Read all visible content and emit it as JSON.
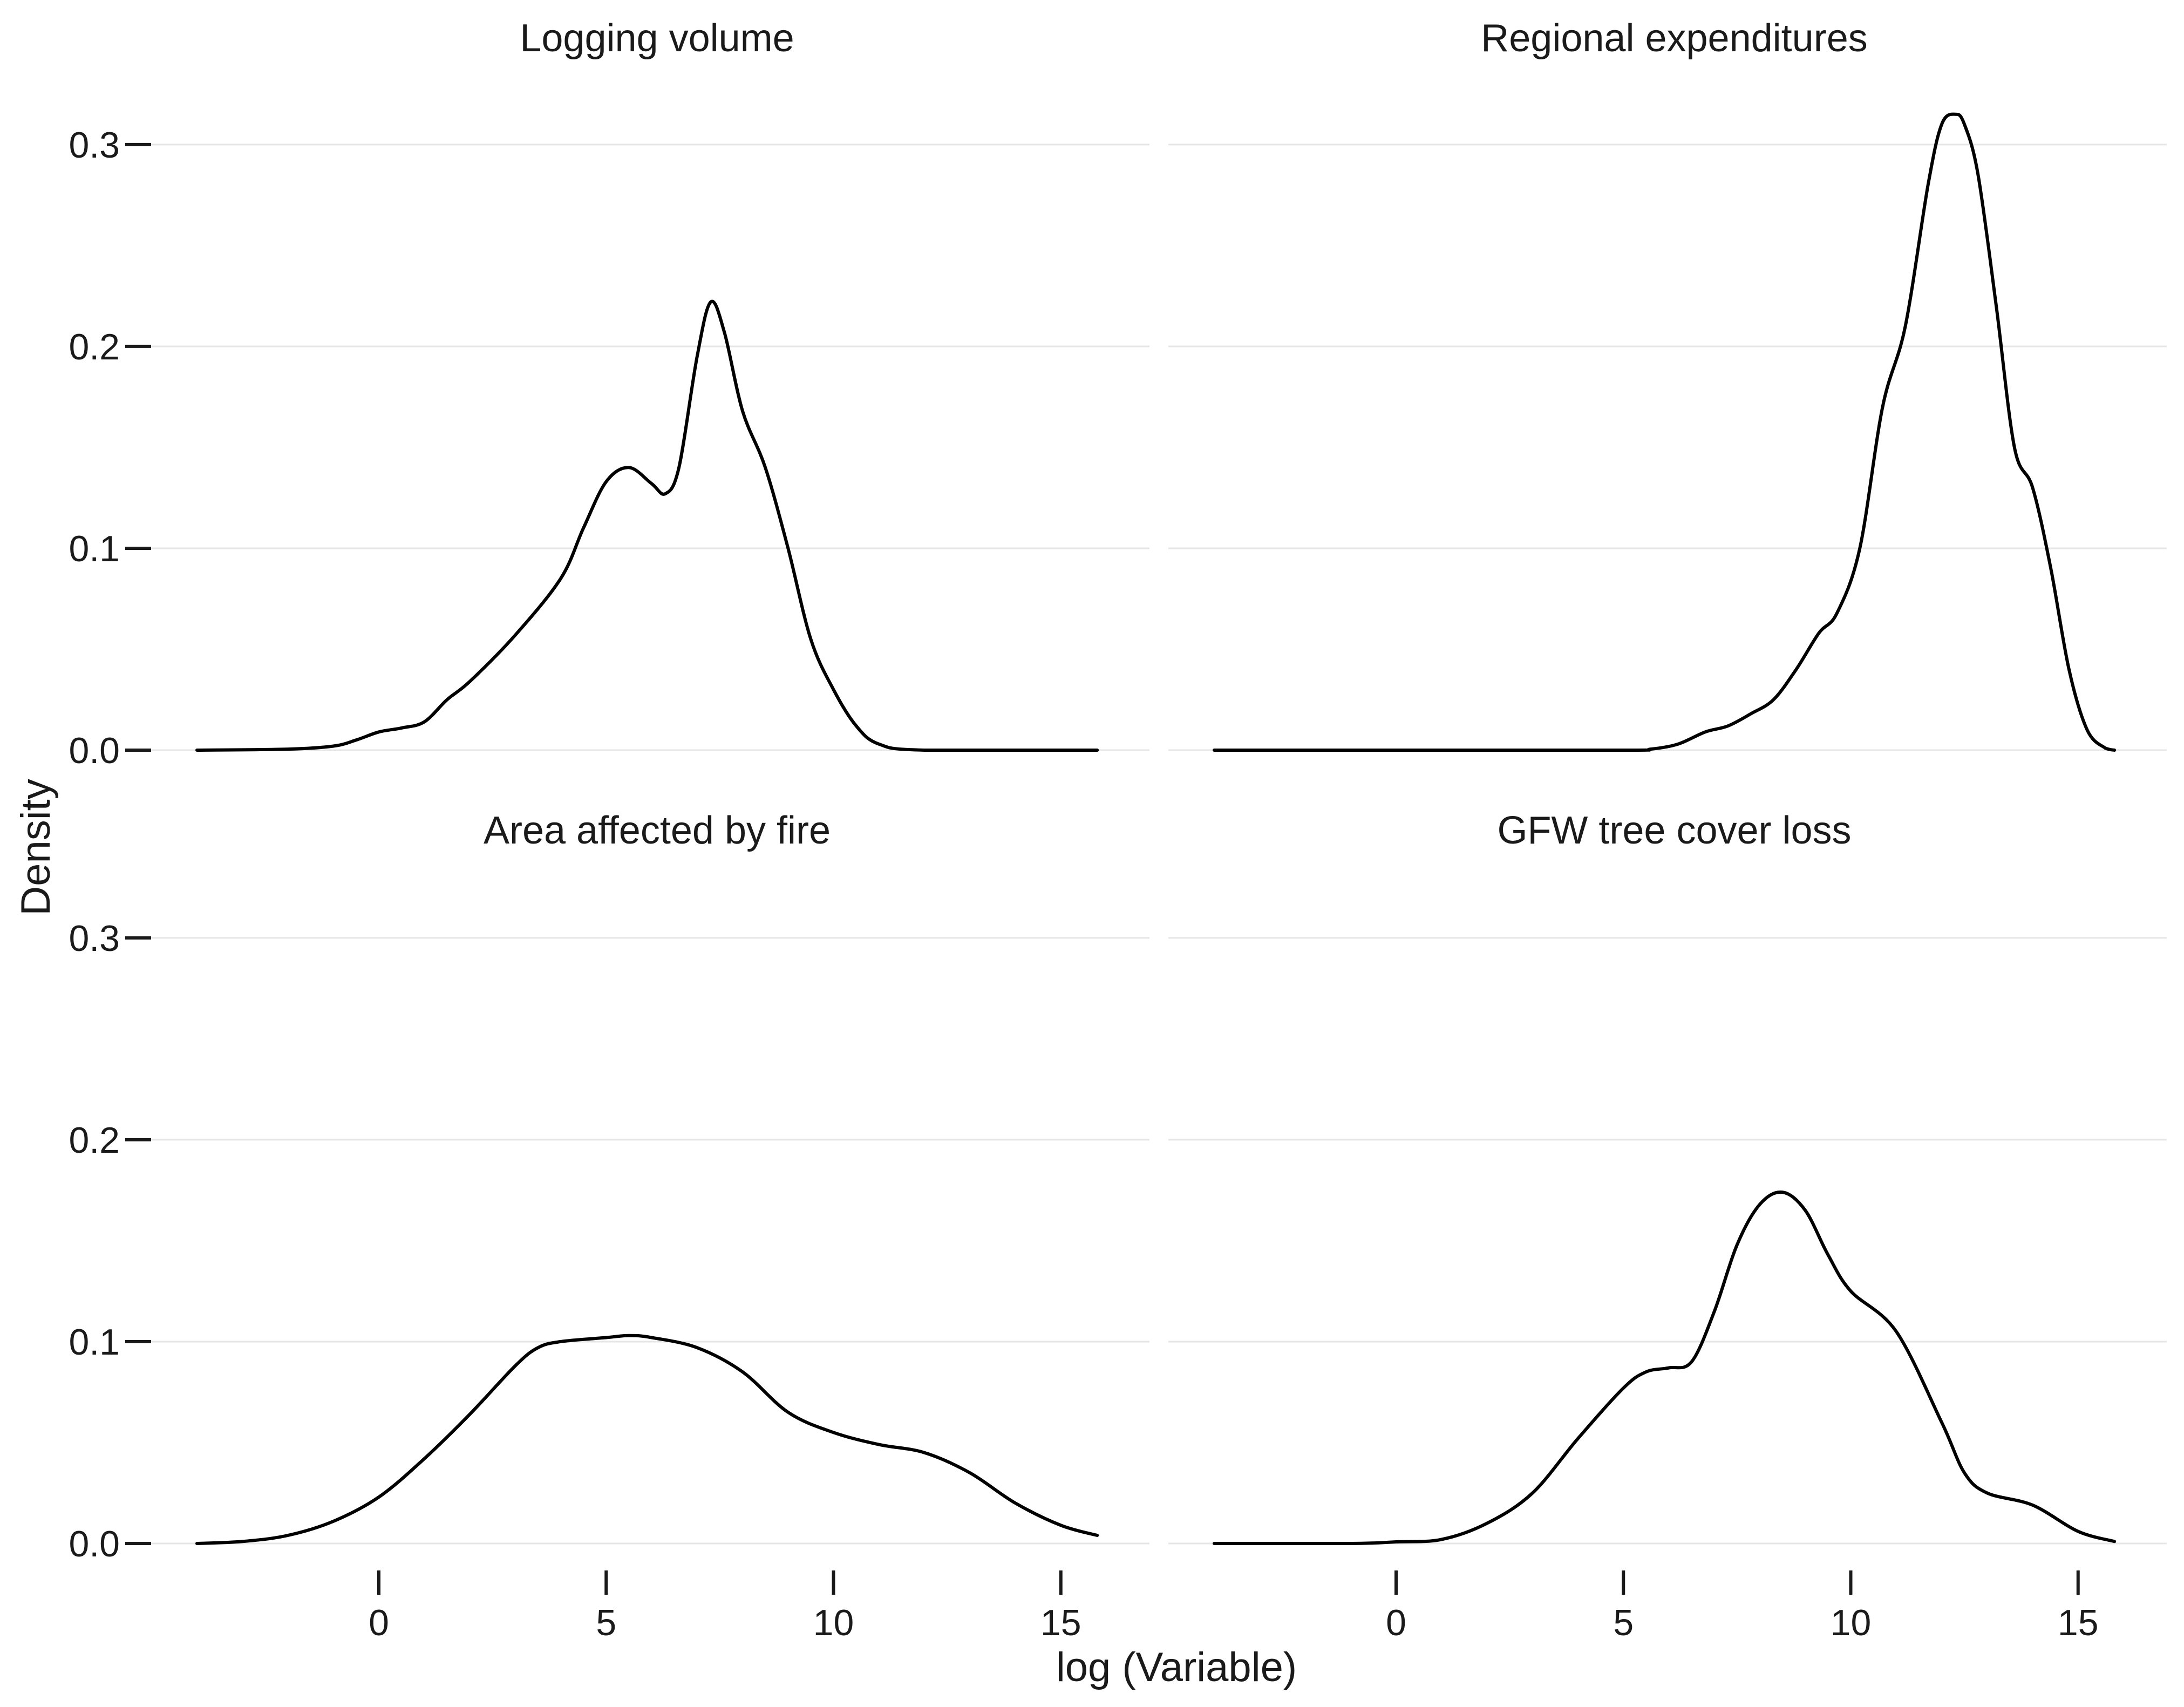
{
  "chart_data": {
    "type": "line",
    "xlabel": "log (Variable)",
    "ylabel": "Density",
    "xlim": [
      -4,
      16
    ],
    "ylim": [
      0,
      0.32
    ],
    "x_ticks": [
      0,
      5,
      10,
      15
    ],
    "x_tick_labels": [
      "0",
      "5",
      "10",
      "15"
    ],
    "y_ticks": [
      0.0,
      0.1,
      0.2,
      0.3
    ],
    "y_tick_labels": [
      "0.0",
      "0.1",
      "0.2",
      "0.3"
    ],
    "grid": "horizontal",
    "line_color": "#000000",
    "panels": [
      {
        "title": "Logging volume",
        "x": [
          -4,
          -2,
          -1,
          -0.5,
          0,
          0.5,
          1,
          1.5,
          2,
          3,
          4,
          4.5,
          5,
          5.5,
          6,
          6.3,
          6.6,
          7,
          7.3,
          7.6,
          8,
          8.5,
          9,
          9.5,
          10,
          10.5,
          11,
          12,
          15.8
        ],
        "y": [
          0,
          0.0005,
          0.002,
          0.005,
          0.009,
          0.011,
          0.014,
          0.025,
          0.034,
          0.057,
          0.085,
          0.11,
          0.133,
          0.14,
          0.132,
          0.127,
          0.14,
          0.195,
          0.222,
          0.207,
          0.168,
          0.14,
          0.1,
          0.055,
          0.03,
          0.012,
          0.003,
          0,
          0
        ]
      },
      {
        "title": "Regional expenditures",
        "x": [
          -4,
          0,
          5,
          5.6,
          6.2,
          6.8,
          7.3,
          7.8,
          8.3,
          8.8,
          9.3,
          9.7,
          10.2,
          10.7,
          11.2,
          11.7,
          12.0,
          12.3,
          12.5,
          12.8,
          13.2,
          13.6,
          14.0,
          14.4,
          14.8,
          15.2,
          15.6,
          15.8
        ],
        "y": [
          0,
          0,
          0,
          0.0005,
          0.003,
          0.009,
          0.012,
          0.018,
          0.025,
          0.04,
          0.058,
          0.068,
          0.1,
          0.17,
          0.21,
          0.28,
          0.31,
          0.315,
          0.31,
          0.285,
          0.22,
          0.15,
          0.13,
          0.09,
          0.04,
          0.01,
          0.001,
          0
        ]
      },
      {
        "title": "Area affected by fire",
        "x": [
          -4,
          -3,
          -2,
          -1,
          0,
          1,
          2,
          3,
          3.5,
          4,
          5,
          5.5,
          6,
          7,
          8,
          9,
          10,
          11,
          12,
          13,
          14,
          15,
          15.8
        ],
        "y": [
          0,
          0.001,
          0.004,
          0.011,
          0.023,
          0.042,
          0.064,
          0.088,
          0.097,
          0.1,
          0.102,
          0.103,
          0.102,
          0.097,
          0.085,
          0.065,
          0.055,
          0.049,
          0.045,
          0.035,
          0.02,
          0.009,
          0.004
        ]
      },
      {
        "title": "GFW tree cover loss",
        "x": [
          -4,
          -1,
          0,
          1,
          2,
          3,
          4,
          5,
          5.5,
          6,
          6.5,
          7,
          7.5,
          8,
          8.5,
          9,
          9.5,
          10,
          11,
          12,
          12.5,
          13,
          14,
          15,
          15.8
        ],
        "y": [
          0,
          0,
          0.0008,
          0.002,
          0.01,
          0.025,
          0.052,
          0.077,
          0.085,
          0.087,
          0.09,
          0.115,
          0.148,
          0.168,
          0.174,
          0.165,
          0.143,
          0.125,
          0.105,
          0.06,
          0.035,
          0.025,
          0.019,
          0.006,
          0.001
        ]
      }
    ]
  }
}
